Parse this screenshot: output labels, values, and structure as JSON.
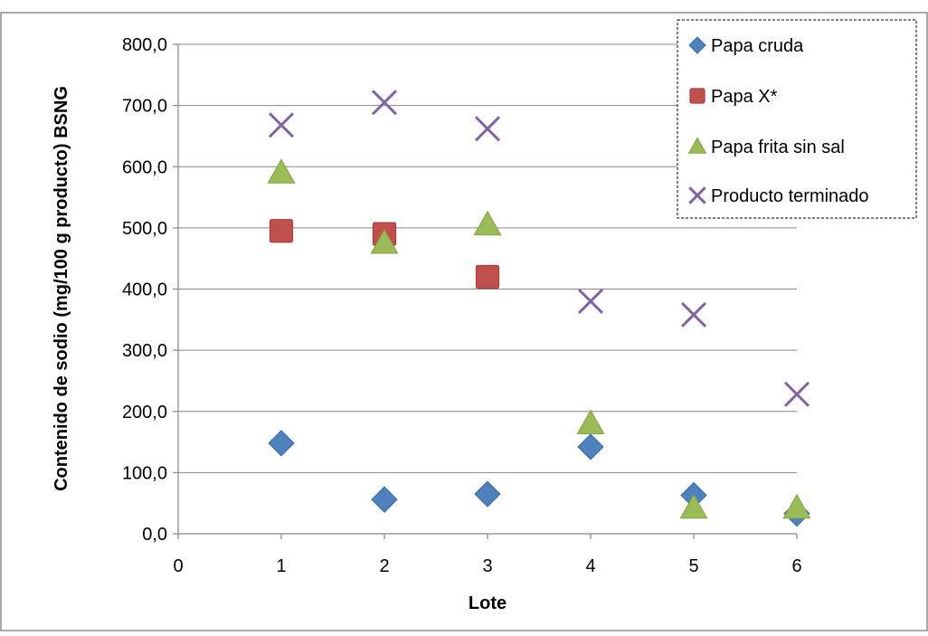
{
  "chart_data": {
    "type": "scatter",
    "xlabel": "Lote",
    "ylabel": "Contenido de sodio (mg/100 g producto) BSNG",
    "xlim": [
      0,
      6
    ],
    "ylim": [
      0,
      800
    ],
    "x_ticks": [
      "0",
      "1",
      "2",
      "3",
      "4",
      "5",
      "6"
    ],
    "y_ticks": [
      "0,0",
      "100,0",
      "200,0",
      "300,0",
      "400,0",
      "500,0",
      "600,0",
      "700,0",
      "800,0"
    ],
    "grid": "horizontal",
    "legend_position": "top-right",
    "series": [
      {
        "name": "Papa cruda",
        "marker": "diamond",
        "color": "#4F81BD",
        "points": [
          [
            1,
            148
          ],
          [
            2,
            56
          ],
          [
            3,
            65
          ],
          [
            4,
            142
          ],
          [
            5,
            63
          ],
          [
            6,
            33
          ]
        ]
      },
      {
        "name": "Papa X*",
        "marker": "square",
        "color": "#C0504D",
        "points": [
          [
            1,
            495
          ],
          [
            2,
            490
          ],
          [
            3,
            420
          ]
        ]
      },
      {
        "name": "Papa frita sin sal",
        "marker": "triangle",
        "color": "#9BBB59",
        "points": [
          [
            1,
            590
          ],
          [
            2,
            475
          ],
          [
            3,
            505
          ],
          [
            4,
            180
          ],
          [
            5,
            42
          ],
          [
            6,
            42
          ]
        ]
      },
      {
        "name": "Producto terminado",
        "marker": "x",
        "color": "#8064A2",
        "points": [
          [
            1,
            668
          ],
          [
            2,
            705
          ],
          [
            3,
            662
          ],
          [
            4,
            380
          ],
          [
            5,
            358
          ],
          [
            6,
            228
          ]
        ]
      }
    ]
  }
}
